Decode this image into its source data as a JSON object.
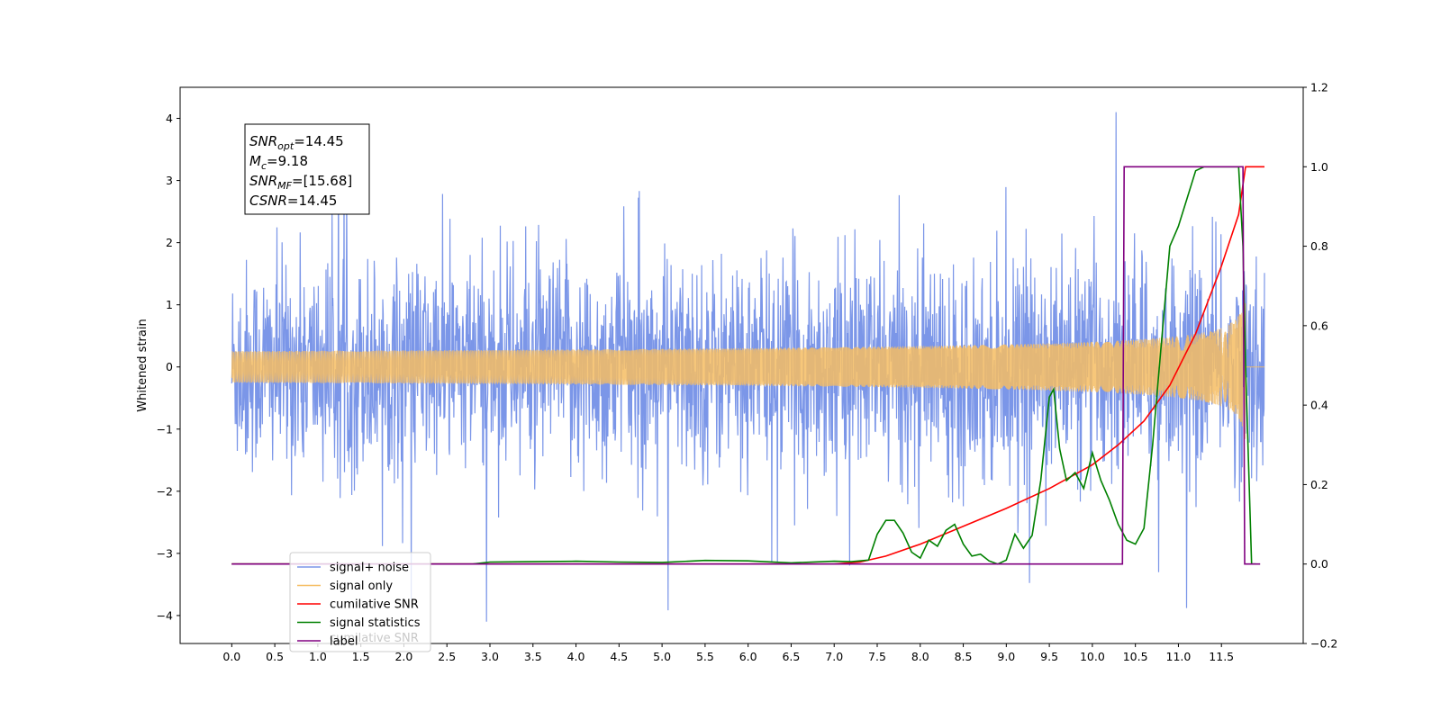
{
  "chart_data": {
    "type": "line",
    "ylabel_left": "Whitened strain",
    "xlim": [
      -0.6,
      12.45
    ],
    "ylim_left": [
      -4.45,
      4.5
    ],
    "ylim_right": [
      -0.2,
      1.2
    ],
    "x_ticks": [
      "0.0",
      "0.5",
      "1.0",
      "1.5",
      "2.0",
      "2.5",
      "3.0",
      "3.5",
      "4.0",
      "4.5",
      "5.0",
      "5.5",
      "6.0",
      "6.5",
      "7.0",
      "7.5",
      "8.0",
      "8.5",
      "9.0",
      "9.5",
      "10.0",
      "10.5",
      "11.0",
      "11.5"
    ],
    "y_ticks_left": [
      "−4",
      "−3",
      "−2",
      "−1",
      "0",
      "1",
      "2",
      "3",
      "4"
    ],
    "y_ticks_right": [
      "−0.2",
      "0.0",
      "0.2",
      "0.4",
      "0.6",
      "0.8",
      "1.0",
      "1.2"
    ],
    "annotation": {
      "snr_opt": {
        "base": "SNR",
        "sub": "opt",
        "value": "=14.45"
      },
      "mc": {
        "base": "M",
        "sub": "c",
        "value": "=9.18"
      },
      "snr_mf": {
        "base": "SNR",
        "sub": "MF",
        "value": "=[15.68]"
      },
      "csnr": {
        "base": "CSNR",
        "value": "=14.45"
      }
    },
    "legend_location": "lower left",
    "series": [
      {
        "name": "signal+ noise",
        "color": "#7b96e8",
        "axis": "left",
        "kind": "noise",
        "x_range": [
          0,
          12.0
        ],
        "amplitude_rms": 0.85
      },
      {
        "name": "signal only",
        "color": "#f6bd63",
        "axis": "left",
        "kind": "chirp",
        "x_range": [
          0,
          12.0
        ],
        "peak_amplitude": 1.25,
        "merger_x": 11.78
      },
      {
        "name": "cumilative SNR",
        "color": "#ff0000",
        "axis": "right",
        "x": [
          0,
          7.0,
          7.3,
          7.6,
          8.0,
          8.5,
          9.0,
          9.5,
          10.0,
          10.3,
          10.6,
          10.9,
          11.2,
          11.5,
          11.7,
          11.78,
          11.8,
          12.0
        ],
        "y": [
          0,
          0,
          0.005,
          0.02,
          0.05,
          0.095,
          0.14,
          0.19,
          0.25,
          0.3,
          0.36,
          0.45,
          0.58,
          0.75,
          0.88,
          1.0,
          1.0,
          1.0
        ]
      },
      {
        "name": "signal statistics",
        "color": "#008000",
        "axis": "right",
        "x": [
          0,
          2.8,
          3.0,
          3.5,
          4.0,
          4.5,
          5.0,
          5.5,
          6.0,
          6.5,
          7.0,
          7.2,
          7.4,
          7.5,
          7.6,
          7.7,
          7.8,
          7.9,
          8.0,
          8.1,
          8.2,
          8.3,
          8.4,
          8.5,
          8.6,
          8.7,
          8.8,
          8.9,
          9.0,
          9.1,
          9.2,
          9.3,
          9.4,
          9.5,
          9.55,
          9.62,
          9.7,
          9.8,
          9.9,
          10.0,
          10.1,
          10.2,
          10.3,
          10.4,
          10.5,
          10.6,
          10.7,
          10.8,
          10.9,
          11.0,
          11.1,
          11.2,
          11.3,
          11.4,
          11.6,
          11.7,
          11.75,
          11.78,
          11.85,
          11.9
        ],
        "y": [
          0,
          0,
          0.005,
          0.006,
          0.007,
          0.005,
          0.004,
          0.009,
          0.008,
          0.003,
          0.007,
          0.006,
          0.01,
          0.075,
          0.11,
          0.11,
          0.078,
          0.03,
          0.015,
          0.06,
          0.045,
          0.085,
          0.1,
          0.05,
          0.02,
          0.025,
          0.008,
          0.0,
          0.01,
          0.075,
          0.04,
          0.072,
          0.21,
          0.42,
          0.44,
          0.29,
          0.21,
          0.23,
          0.19,
          0.28,
          0.21,
          0.16,
          0.1,
          0.06,
          0.05,
          0.09,
          0.3,
          0.55,
          0.8,
          0.85,
          0.92,
          0.99,
          1.0,
          1.0,
          1.0,
          1.0,
          0.8,
          0.5,
          0.0,
          0.0
        ]
      },
      {
        "name": "label",
        "color": "#800080",
        "axis": "right",
        "x": [
          0,
          10.35,
          10.37,
          11.75,
          11.77,
          11.95
        ],
        "y": [
          0,
          0,
          1.0,
          1.0,
          0,
          0
        ]
      }
    ],
    "legend": [
      "signal+ noise",
      "signal only",
      "cumilative SNR",
      "signal statistics",
      "label"
    ],
    "legend_overlap_text": "cumilative SNR"
  }
}
